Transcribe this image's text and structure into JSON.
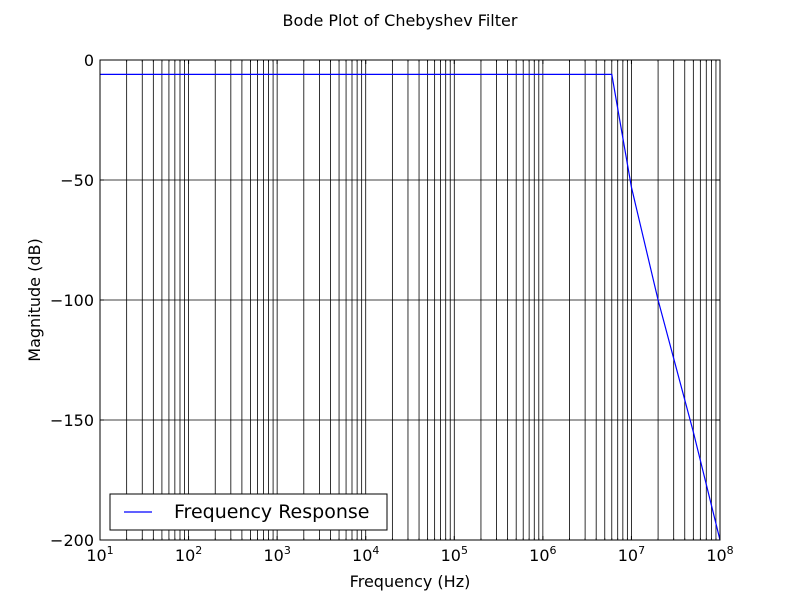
{
  "chart_data": {
    "type": "line",
    "title": "Bode Plot of Chebyshev Filter",
    "xlabel": "Frequency (Hz)",
    "ylabel": "Magnitude (dB)",
    "x_scale": "log",
    "xlim": [
      10,
      100000000
    ],
    "ylim": [
      -200,
      0
    ],
    "x_ticks": [
      {
        "value": 10,
        "base": "10",
        "exp": "1"
      },
      {
        "value": 100,
        "base": "10",
        "exp": "2"
      },
      {
        "value": 1000,
        "base": "10",
        "exp": "3"
      },
      {
        "value": 10000,
        "base": "10",
        "exp": "4"
      },
      {
        "value": 100000,
        "base": "10",
        "exp": "5"
      },
      {
        "value": 1000000,
        "base": "10",
        "exp": "6"
      },
      {
        "value": 10000000,
        "base": "10",
        "exp": "7"
      },
      {
        "value": 100000000,
        "base": "10",
        "exp": "8"
      }
    ],
    "y_ticks": [
      {
        "value": 0,
        "label": "0"
      },
      {
        "value": -50,
        "label": "−50"
      },
      {
        "value": -100,
        "label": "−100"
      },
      {
        "value": -150,
        "label": "−150"
      },
      {
        "value": -200,
        "label": "−200"
      }
    ],
    "grid": true,
    "grid_minor_x": true,
    "legend_position": "lower-left",
    "series": [
      {
        "name": "Frequency Response",
        "color": "#0000ff",
        "x": [
          10,
          100,
          1000,
          10000,
          100000,
          1000000,
          3000000,
          6000000,
          10000000,
          20000000,
          50000000,
          100000000
        ],
        "y": [
          -6,
          -6,
          -6,
          -6,
          -6,
          -6,
          -6,
          -6,
          -53,
          -100,
          -155,
          -200
        ]
      }
    ]
  }
}
